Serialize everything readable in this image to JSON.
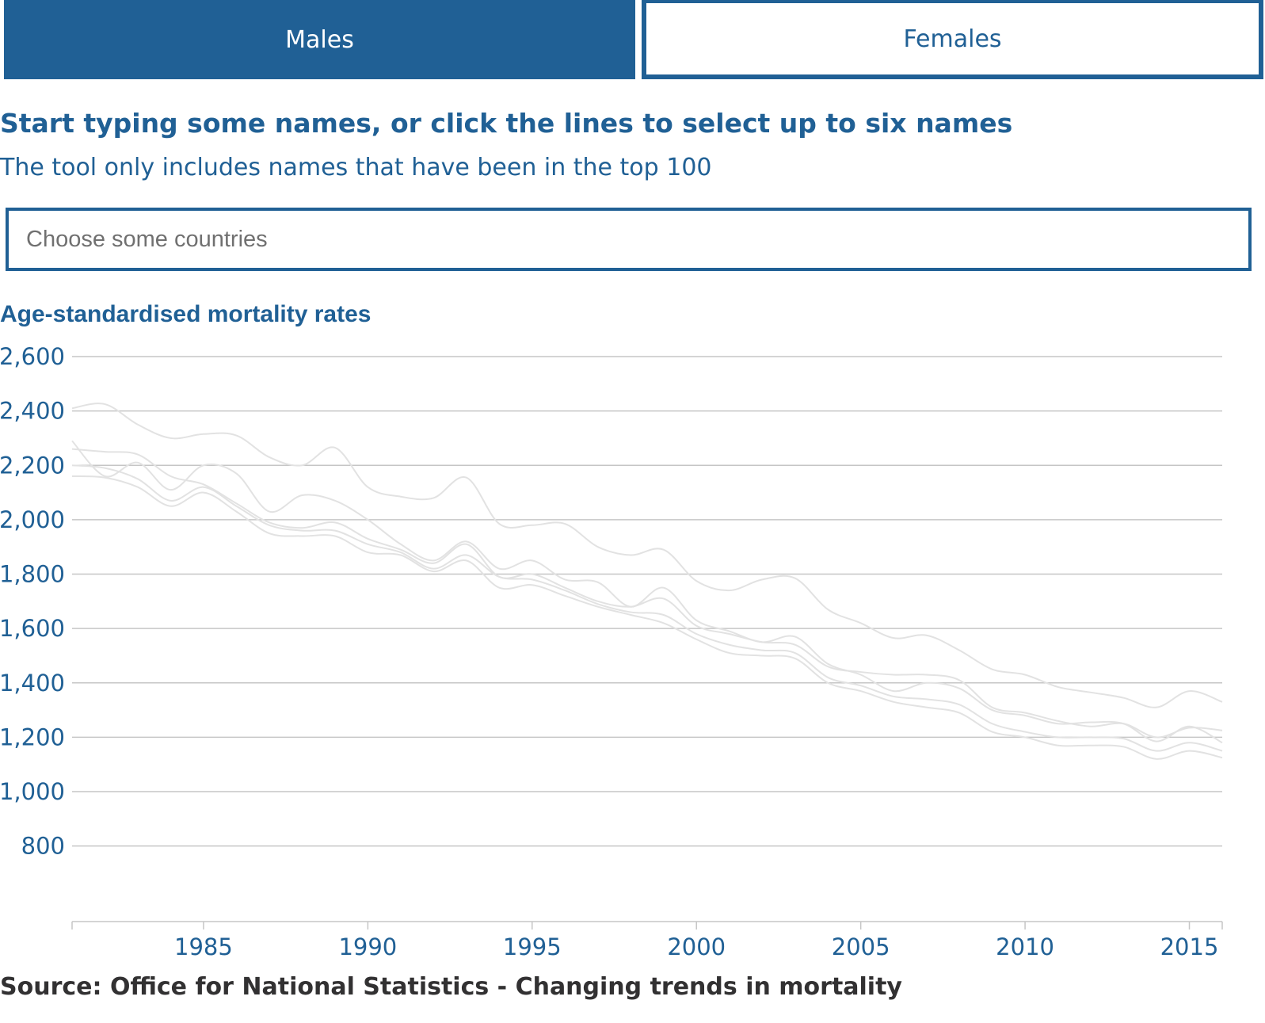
{
  "tabs": [
    {
      "label": "Males",
      "active": true
    },
    {
      "label": "Females",
      "active": false
    }
  ],
  "heading": "Start typing some names, or click the lines to select up to six names",
  "subheading": "The tool only includes names that have been in the top 100",
  "search": {
    "placeholder": "Choose some countries",
    "value": ""
  },
  "source": "Source: Office for National Statistics - Changing trends in mortality",
  "colors": {
    "accent": "#206095",
    "line": "#e2e2e2",
    "grid": "#c6c6c6",
    "source_text": "#323132"
  },
  "chart_data": {
    "type": "line",
    "title": "Age-standardised mortality rates",
    "xlabel": "",
    "ylabel": "",
    "xlim": [
      1981,
      2016
    ],
    "ylim": [
      700,
      2600
    ],
    "yticks": [
      800,
      1000,
      1200,
      1400,
      1600,
      1800,
      2000,
      2200,
      2400,
      2600
    ],
    "ytick_labels": [
      "800",
      "1,000",
      "1,200",
      "1,400",
      "1,600",
      "1,800",
      "2,000",
      "2,200",
      "2,400",
      "2,600"
    ],
    "xticks": [
      1985,
      1990,
      1995,
      2000,
      2005,
      2010,
      2015
    ],
    "xtick_labels": [
      "1985",
      "1990",
      "1995",
      "2000",
      "2005",
      "2010",
      "2015"
    ],
    "grid": true,
    "x": [
      1981,
      1982,
      1983,
      1984,
      1985,
      1986,
      1987,
      1988,
      1989,
      1990,
      1991,
      1992,
      1993,
      1994,
      1995,
      1996,
      1997,
      1998,
      1999,
      2000,
      2001,
      2002,
      2003,
      2004,
      2005,
      2006,
      2007,
      2008,
      2009,
      2010,
      2011,
      2012,
      2013,
      2014,
      2015,
      2016
    ],
    "series": [
      {
        "values": [
          2410,
          2425,
          2350,
          2300,
          2315,
          2310,
          2230,
          2200,
          2265,
          2120,
          2085,
          2080,
          2155,
          1985,
          1980,
          1985,
          1900,
          1870,
          1890,
          1775,
          1740,
          1780,
          1785,
          1670,
          1620,
          1565,
          1575,
          1520,
          1450,
          1430,
          1385,
          1365,
          1345,
          1310,
          1370,
          1330
        ]
      },
      {
        "values": [
          2290,
          2160,
          2210,
          2110,
          2200,
          2170,
          2030,
          2090,
          2070,
          2000,
          1910,
          1850,
          1920,
          1820,
          1850,
          1780,
          1770,
          1680,
          1750,
          1630,
          1590,
          1550,
          1570,
          1470,
          1430,
          1370,
          1400,
          1380,
          1300,
          1280,
          1250,
          1255,
          1250,
          1185,
          1240,
          1180
        ]
      },
      {
        "values": [
          2260,
          2250,
          2240,
          2160,
          2130,
          2060,
          1990,
          1970,
          1990,
          1930,
          1890,
          1840,
          1910,
          1790,
          1800,
          1750,
          1700,
          1680,
          1710,
          1610,
          1580,
          1550,
          1540,
          1460,
          1440,
          1430,
          1430,
          1410,
          1310,
          1290,
          1260,
          1240,
          1250,
          1200,
          1235,
          1225
        ]
      },
      {
        "values": [
          2200,
          2190,
          2150,
          2070,
          2120,
          2050,
          1980,
          1960,
          1960,
          1910,
          1880,
          1820,
          1870,
          1790,
          1780,
          1740,
          1690,
          1660,
          1650,
          1580,
          1540,
          1520,
          1510,
          1420,
          1390,
          1350,
          1340,
          1320,
          1250,
          1220,
          1200,
          1200,
          1195,
          1150,
          1180,
          1150
        ]
      },
      {
        "values": [
          2160,
          2155,
          2120,
          2050,
          2100,
          2030,
          1950,
          1940,
          1940,
          1880,
          1870,
          1810,
          1850,
          1750,
          1760,
          1720,
          1680,
          1650,
          1620,
          1560,
          1510,
          1500,
          1490,
          1400,
          1370,
          1330,
          1310,
          1290,
          1220,
          1200,
          1170,
          1170,
          1165,
          1120,
          1150,
          1125
        ]
      }
    ]
  }
}
